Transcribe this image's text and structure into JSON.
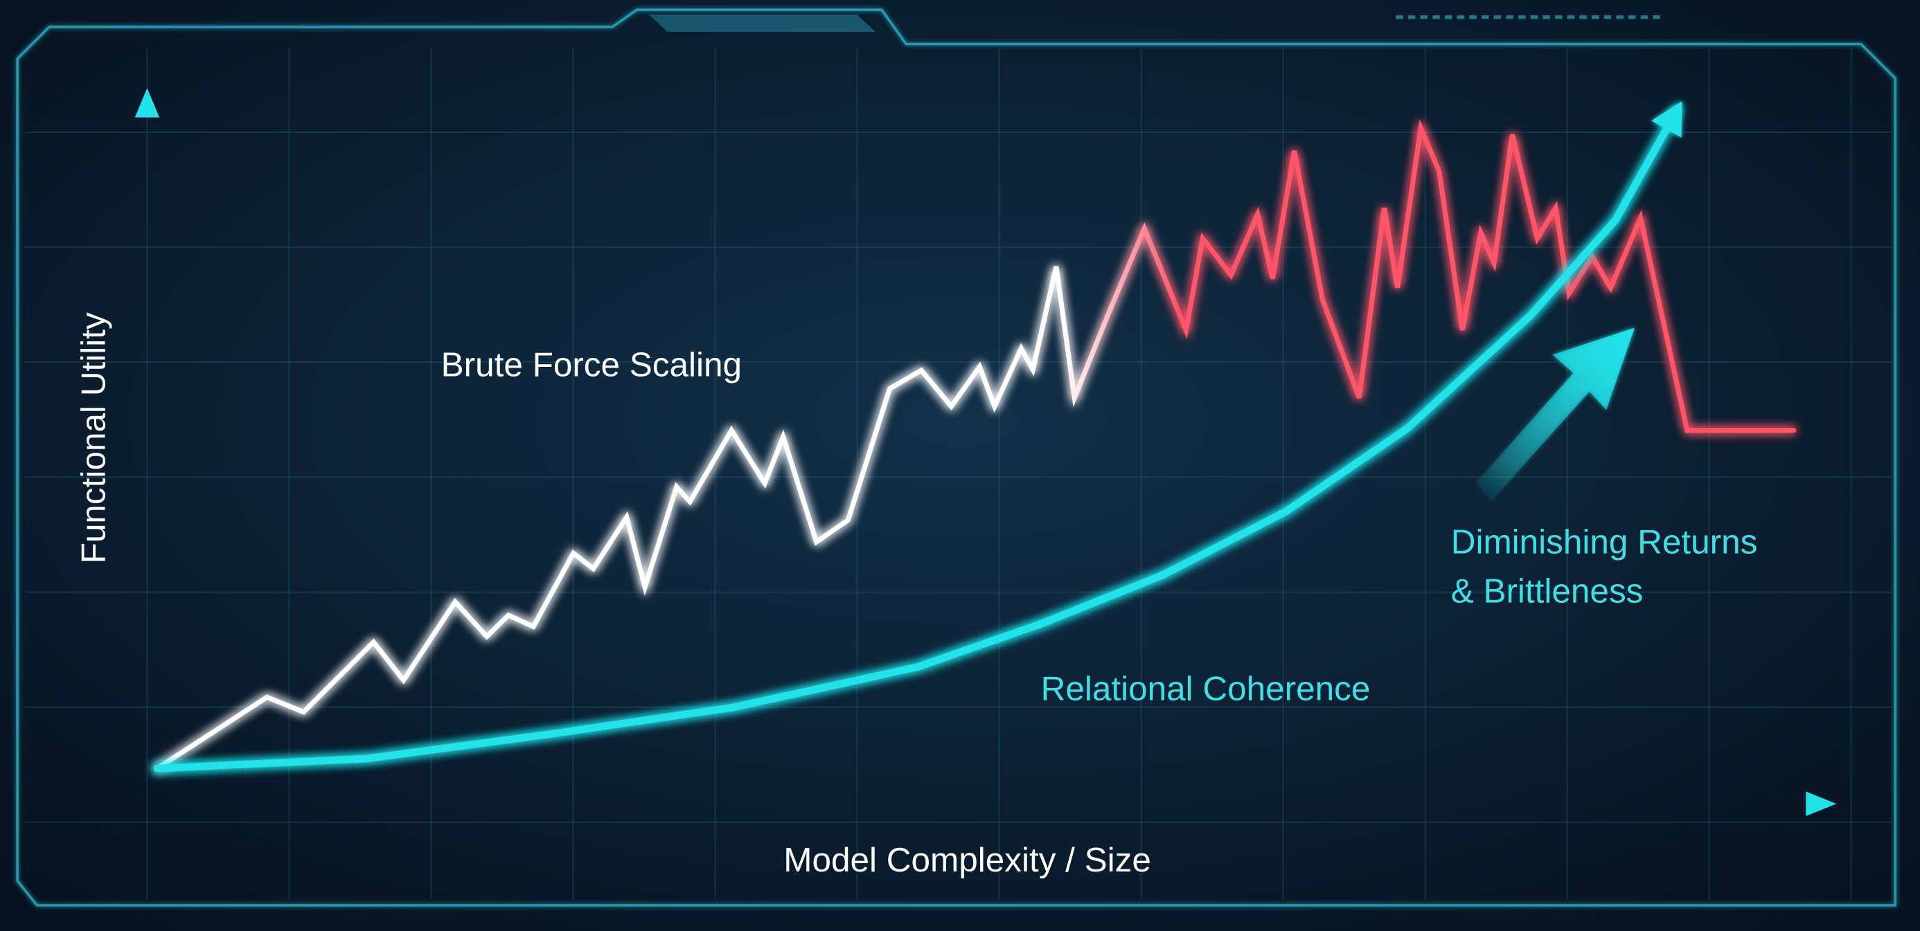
{
  "chart_data": {
    "type": "line",
    "x_label": "Model Complexity / Size",
    "y_label": "Functional Utility",
    "xlim": [
      0,
      100
    ],
    "ylim": [
      0,
      100
    ],
    "grid": true,
    "series": [
      {
        "name": "Brute Force Scaling",
        "color": "#ffffff",
        "alert_color": "#ff5468",
        "x": [
          0.6,
          7.2,
          9.4,
          13.6,
          15.4,
          18.5,
          20.4,
          21.7,
          23.2,
          25.6,
          26.8,
          28.8,
          29.9,
          31.8,
          32.6,
          35.1,
          37.1,
          38.2,
          40.2,
          42.1,
          44.6,
          46.5,
          48.3,
          50.0,
          50.9,
          52.5,
          53.2,
          54.6,
          55.7,
          57.7,
          59.9,
          62.4,
          63.4,
          65.1,
          66.7,
          67.6,
          68.9,
          70.6,
          72.8,
          74.3,
          75.1,
          76.5,
          77.6,
          79.0,
          80.1,
          80.9,
          82.0,
          83.5,
          84.6,
          85.4,
          86.8,
          87.9,
          89.7,
          92.5,
          98.9
        ],
        "values": [
          5.0,
          15.1,
          13.0,
          22.9,
          17.5,
          28.6,
          23.7,
          26.7,
          25.1,
          35.5,
          33.3,
          40.6,
          30.7,
          44.9,
          42.8,
          52.9,
          45.4,
          52.0,
          37.1,
          40.2,
          58.8,
          61.4,
          56.3,
          61.9,
          56.3,
          64.5,
          61.5,
          76.1,
          57.5,
          69.2,
          81.5,
          67.1,
          80.1,
          74.9,
          83.5,
          74.4,
          92.5,
          71.4,
          57.5,
          84.4,
          73.1,
          95.7,
          89.6,
          67.1,
          80.9,
          76.6,
          94.8,
          80.1,
          84.4,
          72.3,
          77.5,
          73.1,
          83.0,
          52.9,
          52.9
        ]
      },
      {
        "name": "Relational Coherence",
        "color": "#22e3ea",
        "x": [
          0.6,
          13.2,
          24.3,
          35.3,
          46.3,
          53.7,
          61.0,
          68.4,
          75.7,
          83.1,
          88.2,
          91.9
        ],
        "values": [
          5.0,
          6.4,
          9.9,
          13.7,
          19.4,
          25.5,
          32.4,
          41.4,
          53.2,
          69.2,
          82.7,
          98.3
        ]
      }
    ],
    "annotations": [
      {
        "text": [
          "Diminishing Returns",
          "& Brittleness"
        ],
        "color": "#3ee0e6"
      }
    ]
  }
}
